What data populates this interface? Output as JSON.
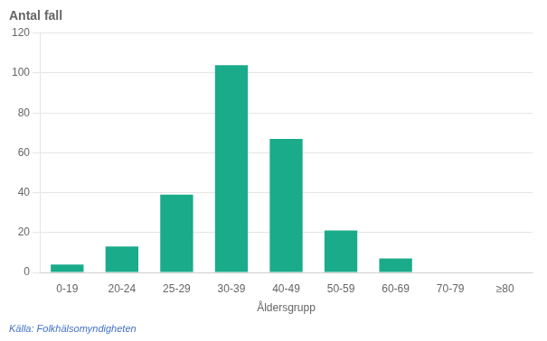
{
  "chart_data": {
    "type": "bar",
    "title": "Antal fall",
    "categories": [
      "0-19",
      "20-24",
      "25-29",
      "30-39",
      "40-49",
      "50-59",
      "60-69",
      "70-79",
      "≥80"
    ],
    "values": [
      4,
      13,
      39,
      104,
      67,
      21,
      7,
      0,
      0
    ],
    "color": "#1aab8b",
    "xlabel": "Åldersgrupp",
    "ylim": [
      0,
      120
    ],
    "yticks": [
      0,
      20,
      40,
      60,
      80,
      100,
      120
    ],
    "grid": true,
    "annotations": [
      {
        "text": "Källa: Folkhälsomyndigheten",
        "color": "#4472c4"
      }
    ]
  }
}
